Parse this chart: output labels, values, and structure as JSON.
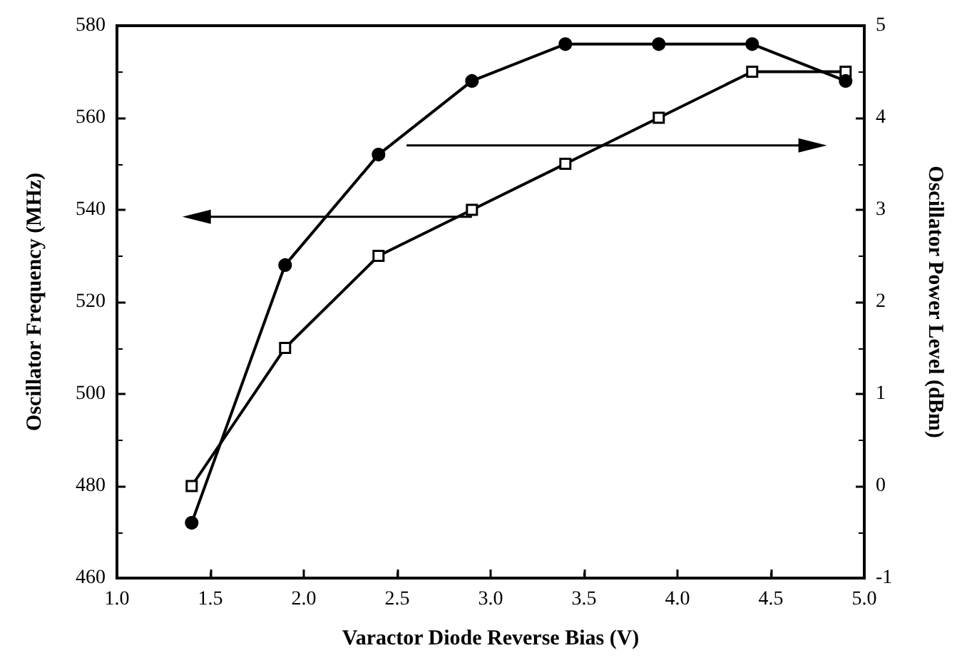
{
  "chart_data": {
    "type": "line",
    "xlabel": "Varactor Diode Reverse Bias (V)",
    "ylabel": "Oscillator Frequency (MHz)",
    "y2label": "Oscillator Power Level (dBm)",
    "x": [
      1.4,
      1.9,
      2.4,
      2.9,
      3.4,
      3.9,
      4.4,
      4.9
    ],
    "xlim": [
      1.0,
      5.0
    ],
    "xticks": [
      {
        "value": 1,
        "label": "1.0"
      },
      1.5,
      {
        "value": 2,
        "label": "2.0"
      },
      2.5,
      {
        "value": 3,
        "label": "3.0"
      },
      3.5,
      {
        "value": 4,
        "label": "4.0"
      },
      4.5,
      {
        "value": 5,
        "label": "5.0"
      }
    ],
    "ylim": [
      460,
      580
    ],
    "yticks": [
      460,
      480,
      500,
      520,
      540,
      560,
      580
    ],
    "y2lim": [
      -1,
      5
    ],
    "y2ticks": [
      -1,
      0,
      1,
      2,
      3,
      4,
      5
    ],
    "grid": false,
    "series": [
      {
        "color": "#000000",
        "marker": "square",
        "values": [
          480,
          510,
          530,
          540,
          550,
          560,
          570,
          570
        ]
      },
      {
        "color": "#000000",
        "marker": "circle",
        "axis": "y2",
        "values": [
          -0.4,
          2.4,
          3.6,
          4.4,
          4.8,
          4.8,
          4.8,
          4.4
        ]
      }
    ]
  }
}
